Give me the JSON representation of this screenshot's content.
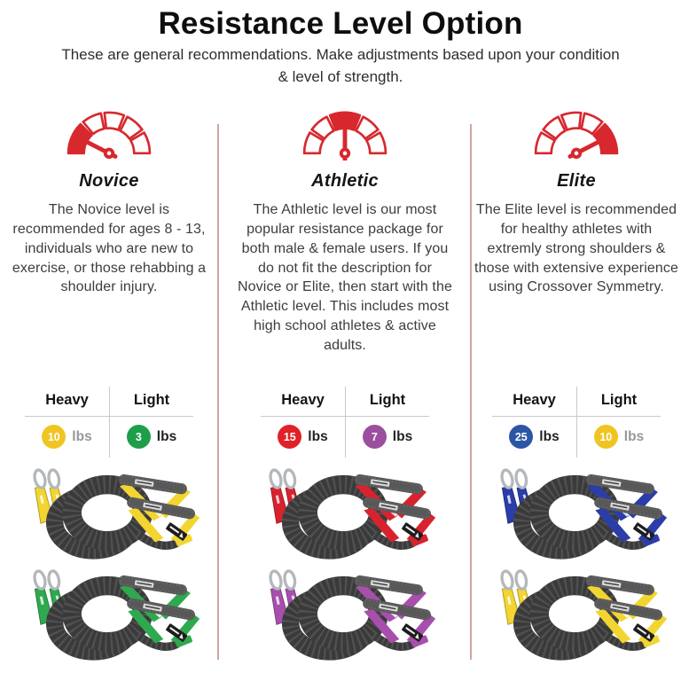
{
  "page": {
    "title": "Resistance Level Option",
    "subtitle": "These are general recommendations. Make adjustments based upon your condition & level of strength."
  },
  "colors": {
    "accent_red": "#d7282e",
    "divider_line": "#cfa6a2",
    "table_line": "#c9c9c9",
    "coil_gray": "#3a3a3a",
    "handle_gray": "#585858",
    "carabiner_metal": "#b4b8bb"
  },
  "columns": [
    {
      "name": "Novice",
      "gauge": "low",
      "description": "The Novice level is recommended for ages 8 - 13, individuals who are new to exercise, or those rehabbing a shoulder injury.",
      "table": {
        "heavy_header": "Heavy",
        "light_header": "Light",
        "heavy": {
          "value": "10",
          "unit": "lbs",
          "color": "#f0c522",
          "muted_unit": true
        },
        "light": {
          "value": "3",
          "unit": "lbs",
          "color": "#1e9e4a",
          "muted_unit": false
        }
      },
      "products": [
        {
          "label": "heavy-band-pair",
          "color": "#f2d530"
        },
        {
          "label": "light-band-pair",
          "color": "#2fa94f"
        }
      ]
    },
    {
      "name": "Athletic",
      "gauge": "mid",
      "description": "The Athletic level is our most popular resistance package for both male & female users. If you do not fit the description for Novice or Elite, then start with the Athletic level. This includes most high school athletes & active adults.",
      "table": {
        "heavy_header": "Heavy",
        "light_header": "Light",
        "heavy": {
          "value": "15",
          "unit": "lbs",
          "color": "#e02128",
          "muted_unit": false
        },
        "light": {
          "value": "7",
          "unit": "lbs",
          "color": "#9c4f9e",
          "muted_unit": false
        }
      },
      "products": [
        {
          "label": "heavy-band-pair",
          "color": "#d8232e"
        },
        {
          "label": "light-band-pair",
          "color": "#a84fae"
        }
      ]
    },
    {
      "name": "Elite",
      "gauge": "high",
      "description": "The Elite level is recommended for healthy athletes with extremly strong shoulders & those with extensive experience using Crossover Symmetry.",
      "table": {
        "heavy_header": "Heavy",
        "light_header": "Light",
        "heavy": {
          "value": "25",
          "unit": "lbs",
          "color": "#2d55a5",
          "muted_unit": false
        },
        "light": {
          "value": "10",
          "unit": "lbs",
          "color": "#f0c522",
          "muted_unit": true
        }
      },
      "products": [
        {
          "label": "heavy-band-pair",
          "color": "#2b3da8"
        },
        {
          "label": "light-band-pair",
          "color": "#f2d530"
        }
      ]
    }
  ]
}
